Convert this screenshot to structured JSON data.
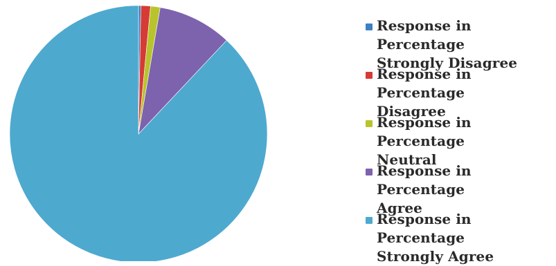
{
  "chart_data": {
    "type": "pie",
    "title": "",
    "categories": [
      "Response in Percentage Strongly Disagree",
      "Response in Percentage Disagree",
      "Response in Percentage Neutral",
      "Response in Percentage Agree",
      "Response in Percentage Strongly Agree"
    ],
    "values": [
      0.3,
      1.2,
      1.2,
      9.3,
      88.0
    ],
    "colors": [
      "#3f7fc4",
      "#d63b35",
      "#b8c42c",
      "#7d62ad",
      "#4ea9cf"
    ],
    "legend_placement": "right",
    "legend": [
      {
        "line1": "Response in Percentage",
        "line2": "Strongly Disagree"
      },
      {
        "line1": "Response in Percentage",
        "line2": "Disagree"
      },
      {
        "line1": "Response in Percentage",
        "line2": "Neutral"
      },
      {
        "line1": "Response in Percentage",
        "line2": "Agree"
      },
      {
        "line1": "Response in Percentage",
        "line2": "Strongly Agree"
      }
    ]
  }
}
